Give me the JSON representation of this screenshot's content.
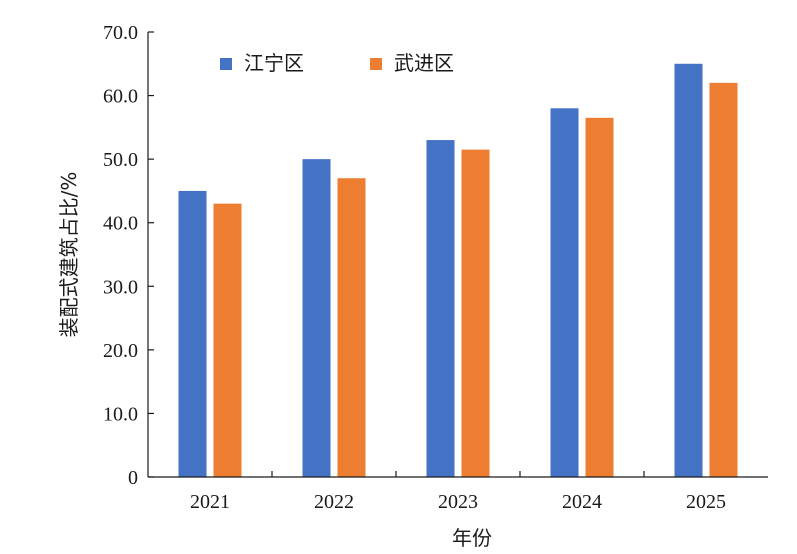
{
  "chart_data": {
    "type": "bar",
    "xlabel": "年份",
    "ylabel": "装配式建筑占比/%",
    "categories": [
      "2021",
      "2022",
      "2023",
      "2024",
      "2025"
    ],
    "series": [
      {
        "name": "江宁区",
        "color": "#4472C4",
        "values": [
          45,
          50,
          53,
          58,
          65
        ]
      },
      {
        "name": "武进区",
        "color": "#ED7D31",
        "values": [
          43,
          47,
          51.5,
          56.5,
          62
        ]
      }
    ],
    "ylim": [
      0,
      70
    ],
    "yticks": [
      "0",
      "10.0",
      "20.0",
      "30.0",
      "40.0",
      "50.0",
      "60.0",
      "70.0"
    ],
    "grid": false,
    "legend_position": "top-left"
  }
}
